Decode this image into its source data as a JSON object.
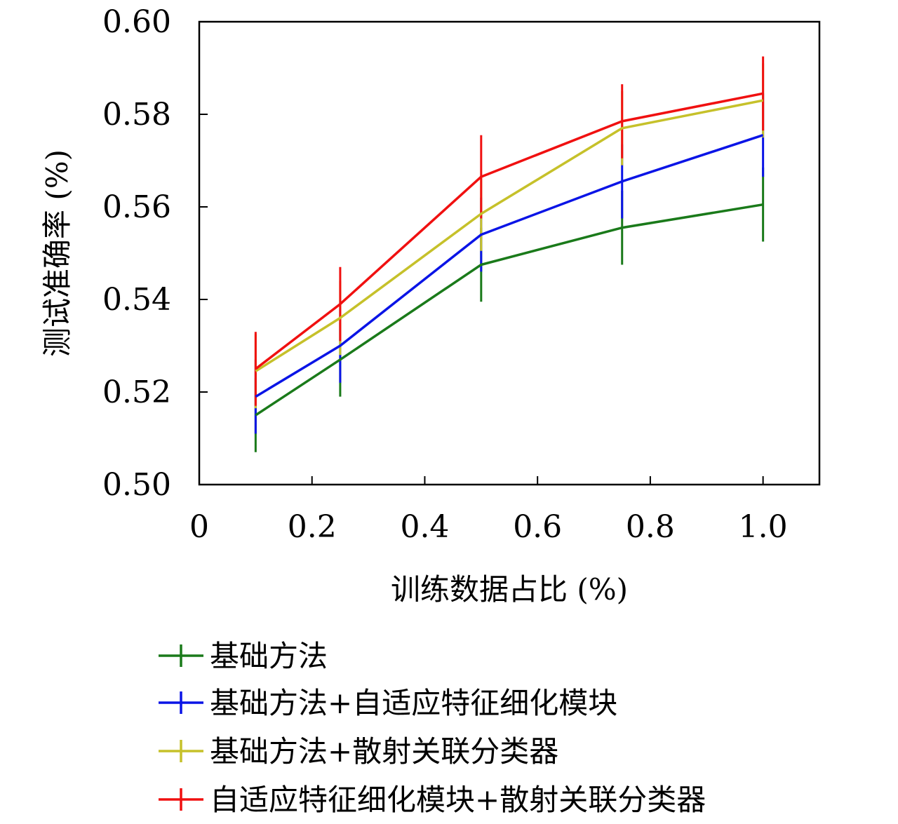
{
  "chart_data": {
    "type": "line",
    "title": "",
    "xlabel": "训练数据占比 (%)",
    "ylabel": "测试准确率 (%)",
    "xlim": [
      0,
      1.1
    ],
    "ylim": [
      0.5,
      0.6
    ],
    "xticks": [
      0,
      0.2,
      0.4,
      0.6,
      0.8,
      1.0
    ],
    "xtick_labels": [
      "0",
      "0.2",
      "0.4",
      "0.6",
      "0.8",
      "1.0"
    ],
    "yticks": [
      0.5,
      0.52,
      0.54,
      0.56,
      0.58,
      0.6
    ],
    "ytick_labels": [
      "0.50",
      "0.52",
      "0.54",
      "0.56",
      "0.58",
      "0.60"
    ],
    "grid": false,
    "legend_position": "bottom",
    "x": [
      0.1,
      0.25,
      0.5,
      0.75,
      1.0
    ],
    "series": [
      {
        "name": "基础方法",
        "color": "#1a7a1a",
        "values": [
          0.515,
          0.527,
          0.5475,
          0.5555,
          0.5605
        ],
        "errors": [
          0.008,
          0.008,
          0.008,
          0.008,
          0.008
        ]
      },
      {
        "name": "基础方法+自适应特征细化模块",
        "color": "#0a14e6",
        "values": [
          0.519,
          0.53,
          0.554,
          0.5655,
          0.5755
        ],
        "errors": [
          0.008,
          0.008,
          0.008,
          0.008,
          0.009
        ]
      },
      {
        "name": "基础方法+散射关联分类器",
        "color": "#c6c12a",
        "values": [
          0.5245,
          0.536,
          0.5585,
          0.577,
          0.583
        ],
        "errors": [
          0.008,
          0.008,
          0.008,
          0.008,
          0.008
        ]
      },
      {
        "name": "自适应特征细化模块+散射关联分类器",
        "color": "#f01010",
        "values": [
          0.525,
          0.539,
          0.5665,
          0.5785,
          0.5845
        ],
        "errors": [
          0.008,
          0.008,
          0.009,
          0.008,
          0.008
        ]
      }
    ]
  }
}
